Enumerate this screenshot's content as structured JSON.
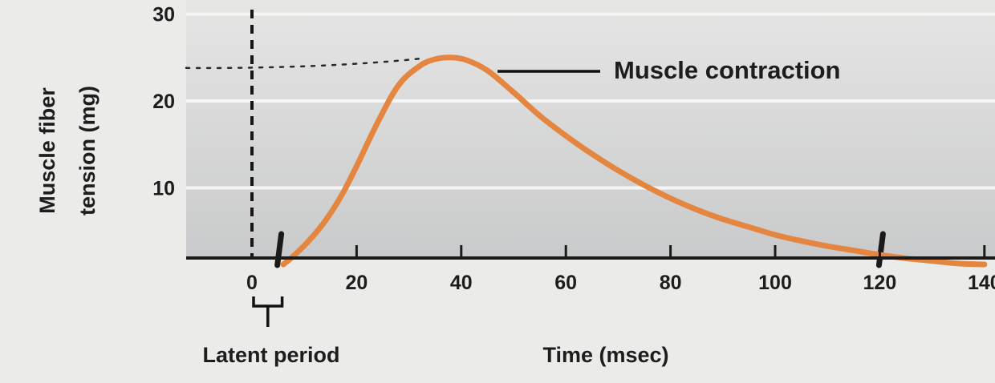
{
  "chart_data": {
    "type": "line",
    "title": "",
    "xlabel": "Time (msec)",
    "ylabel_lines": [
      "Muscle fiber",
      "tension (mg)"
    ],
    "x_ticks": [
      {
        "value": 0,
        "label": "0"
      },
      {
        "value": 20,
        "label": "20"
      },
      {
        "value": 40,
        "label": "40"
      },
      {
        "value": 60,
        "label": "60"
      },
      {
        "value": 80,
        "label": "80"
      },
      {
        "value": 100,
        "label": "100"
      },
      {
        "value": 120,
        "label": "120"
      },
      {
        "value": 140,
        "label": "140"
      }
    ],
    "y_ticks": [
      {
        "value": 10,
        "label": "10"
      },
      {
        "value": 20,
        "label": "20"
      },
      {
        "value": 30,
        "label": "30"
      }
    ],
    "xlim": [
      -12,
      140
    ],
    "ylim": [
      1,
      32
    ],
    "grid": true,
    "series": [
      {
        "color": "#e4863f",
        "x": [
          6,
          8,
          11,
          14,
          17,
          20,
          24,
          28,
          32,
          35,
          38,
          41,
          45,
          50,
          55,
          60,
          65,
          70,
          75,
          80,
          85,
          90,
          95,
          100,
          105,
          110,
          115,
          120,
          125,
          130,
          135,
          140
        ],
        "y": [
          1.2,
          2.2,
          4.0,
          6.2,
          9.0,
          12.5,
          17.5,
          21.8,
          24.0,
          24.8,
          25.0,
          24.7,
          23.5,
          21.0,
          18.3,
          16.0,
          13.9,
          12.0,
          10.3,
          8.8,
          7.5,
          6.4,
          5.5,
          4.6,
          3.9,
          3.3,
          2.8,
          2.3,
          1.9,
          1.6,
          1.3,
          1.2
        ]
      }
    ],
    "annotations": {
      "peak_label": "Muscle contraction",
      "latent_label": "Latent period",
      "stimulus_x": 0,
      "latent_end_x": 5,
      "peak_y": 25,
      "marks_x": [
        5,
        120
      ]
    }
  }
}
